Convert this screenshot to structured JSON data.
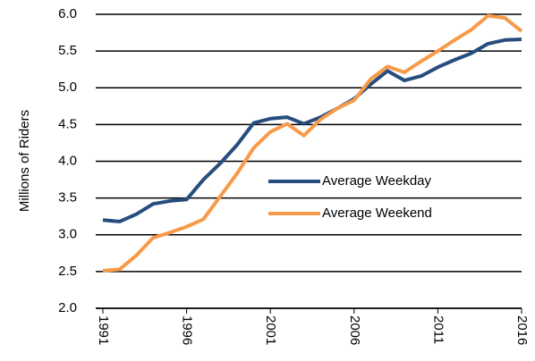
{
  "chart_data": {
    "type": "line",
    "y_label": "Millions  of Riders",
    "x": [
      1991,
      1992,
      1993,
      1994,
      1995,
      1996,
      1997,
      1998,
      1999,
      2000,
      2001,
      2002,
      2003,
      2004,
      2005,
      2006,
      2007,
      2008,
      2009,
      2010,
      2011,
      2012,
      2013,
      2014,
      2015,
      2016
    ],
    "series": [
      {
        "name": "Average Weekday",
        "color": "#264d7e",
        "values": [
          3.2,
          3.18,
          3.28,
          3.42,
          3.46,
          3.48,
          3.75,
          3.97,
          4.22,
          4.52,
          4.58,
          4.6,
          4.51,
          4.6,
          4.72,
          4.85,
          5.05,
          5.23,
          5.1,
          5.16,
          5.28,
          5.38,
          5.47,
          5.6,
          5.65,
          5.66
        ]
      },
      {
        "name": "Average Weekend",
        "color": "#f79a4a",
        "values": [
          2.51,
          2.53,
          2.72,
          2.96,
          3.03,
          3.11,
          3.21,
          3.52,
          3.83,
          4.18,
          4.4,
          4.51,
          4.35,
          4.57,
          4.72,
          4.83,
          5.12,
          5.29,
          5.21,
          5.36,
          5.5,
          5.65,
          5.79,
          5.98,
          5.95,
          5.77
        ]
      }
    ],
    "xlim": [
      1991,
      2016
    ],
    "xticks": [
      1991,
      1996,
      2001,
      2006,
      2011,
      2016
    ],
    "ylim": [
      2,
      6
    ],
    "yticks": [
      {
        "value": 2,
        "label": "2.0"
      },
      2.5,
      {
        "value": 3,
        "label": "3.0"
      },
      3.5,
      {
        "value": 4,
        "label": "4.0"
      },
      4.5,
      {
        "value": 5,
        "label": "5.0"
      },
      5.5,
      {
        "value": 6,
        "label": "6.0"
      }
    ],
    "grid": true,
    "legend": "right"
  }
}
